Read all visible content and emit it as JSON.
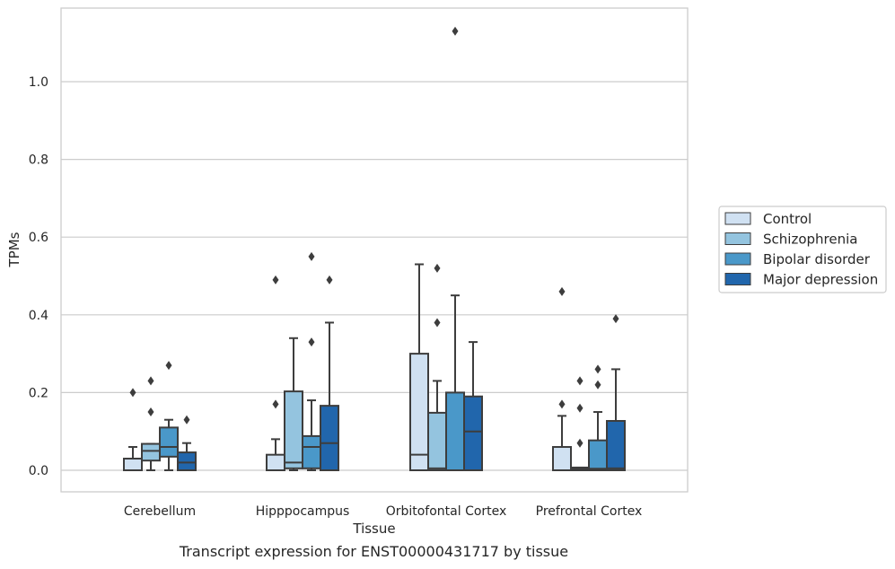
{
  "caption": "Transcript expression for ENST00000431717 by tissue",
  "chart_data": {
    "type": "box",
    "xlabel": "Tissue",
    "ylabel": "TPMs",
    "ylim": [
      -0.055,
      1.19
    ],
    "yticks": [
      0.0,
      0.2,
      0.4,
      0.6,
      0.8,
      1.0
    ],
    "ytick_labels": [
      "0.0",
      "0.2",
      "0.4",
      "0.6",
      "0.8",
      "1.0"
    ],
    "grid": "horizontal",
    "legend_position": "right",
    "categories": [
      "Cerebellum",
      "Hipppocampus",
      "Orbitofontal Cortex",
      "Prefrontal Cortex"
    ],
    "series": [
      {
        "name": "Control",
        "color": "#d0e1f2",
        "boxes": [
          {
            "q1": 0.0,
            "median": 0.0,
            "q3": 0.03,
            "whislo": 0.0,
            "whishi": 0.06,
            "fliers": [
              0.2
            ]
          },
          {
            "q1": 0.0,
            "median": 0.0,
            "q3": 0.04,
            "whislo": 0.0,
            "whishi": 0.08,
            "fliers": [
              0.17,
              0.49
            ]
          },
          {
            "q1": 0.0,
            "median": 0.04,
            "q3": 0.3,
            "whislo": 0.0,
            "whishi": 0.53,
            "fliers": []
          },
          {
            "q1": 0.0,
            "median": 0.0,
            "q3": 0.06,
            "whislo": 0.0,
            "whishi": 0.14,
            "fliers": [
              0.17,
              0.46
            ]
          }
        ]
      },
      {
        "name": "Schizophrenia",
        "color": "#94c4df",
        "boxes": [
          {
            "q1": 0.025,
            "median": 0.05,
            "q3": 0.068,
            "whislo": 0.0,
            "whishi": 0.068,
            "fliers": [
              0.15,
              0.23
            ]
          },
          {
            "q1": 0.005,
            "median": 0.02,
            "q3": 0.203,
            "whislo": 0.0,
            "whishi": 0.34,
            "fliers": []
          },
          {
            "q1": 0.0,
            "median": 0.005,
            "q3": 0.148,
            "whislo": 0.0,
            "whishi": 0.23,
            "fliers": [
              0.38,
              0.52
            ]
          },
          {
            "q1": 0.0,
            "median": 0.003,
            "q3": 0.007,
            "whislo": 0.0,
            "whishi": 0.007,
            "fliers": [
              0.07,
              0.16,
              0.23
            ]
          }
        ]
      },
      {
        "name": "Bipolar disorder",
        "color": "#4a98c9",
        "boxes": [
          {
            "q1": 0.035,
            "median": 0.06,
            "q3": 0.11,
            "whislo": 0.0,
            "whishi": 0.13,
            "fliers": [
              0.27
            ]
          },
          {
            "q1": 0.005,
            "median": 0.06,
            "q3": 0.088,
            "whislo": 0.0,
            "whishi": 0.18,
            "fliers": [
              0.33,
              0.55
            ]
          },
          {
            "q1": 0.0,
            "median": 0.0,
            "q3": 0.2,
            "whislo": 0.0,
            "whishi": 0.45,
            "fliers": [
              1.13
            ]
          },
          {
            "q1": 0.0,
            "median": 0.004,
            "q3": 0.077,
            "whislo": 0.0,
            "whishi": 0.15,
            "fliers": [
              0.22,
              0.26
            ]
          }
        ]
      },
      {
        "name": "Major depression",
        "color": "#2166ac",
        "boxes": [
          {
            "q1": 0.0,
            "median": 0.02,
            "q3": 0.046,
            "whislo": 0.0,
            "whishi": 0.07,
            "fliers": [
              0.13
            ]
          },
          {
            "q1": 0.0,
            "median": 0.07,
            "q3": 0.166,
            "whislo": 0.0,
            "whishi": 0.38,
            "fliers": [
              0.49
            ]
          },
          {
            "q1": 0.0,
            "median": 0.1,
            "q3": 0.19,
            "whislo": 0.0,
            "whishi": 0.33,
            "fliers": []
          },
          {
            "q1": 0.0,
            "median": 0.005,
            "q3": 0.127,
            "whislo": 0.0,
            "whishi": 0.26,
            "fliers": [
              0.39
            ]
          }
        ]
      }
    ]
  }
}
